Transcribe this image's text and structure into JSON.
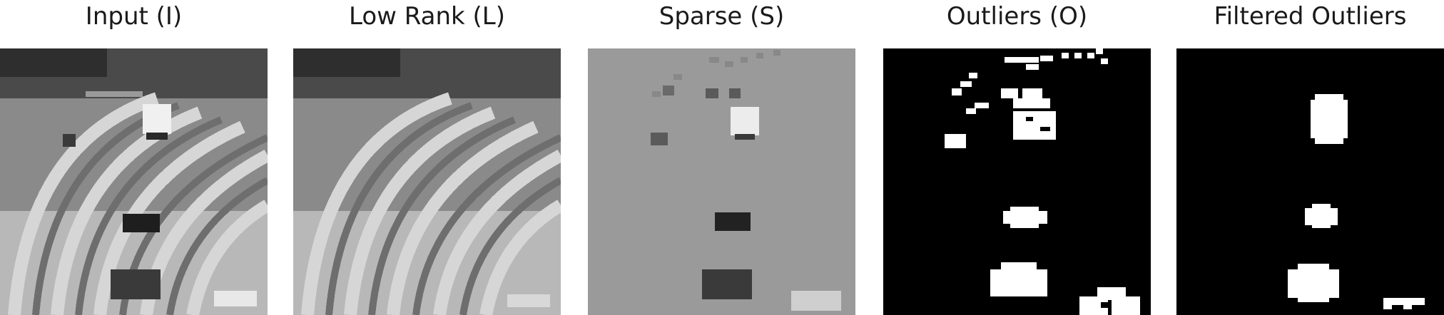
{
  "figure": {
    "panels": [
      {
        "title": "Input (I)"
      },
      {
        "title": "Low Rank (L)"
      },
      {
        "title": "Sparse (S)"
      },
      {
        "title": "Outliers (O)"
      },
      {
        "title": "Filtered Outliers"
      }
    ]
  },
  "colors": {
    "background": "#ffffff",
    "title_text": "#1a1a1a",
    "sparse_gray": "#9a9a9a",
    "mask_black": "#000000",
    "mask_white": "#ffffff"
  }
}
